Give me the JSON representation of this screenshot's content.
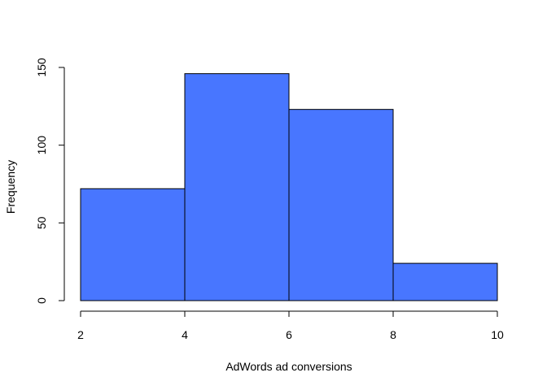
{
  "chart_data": {
    "type": "bar",
    "subtype": "histogram",
    "bins": [
      {
        "start": 2,
        "end": 4,
        "count": 72
      },
      {
        "start": 4,
        "end": 6,
        "count": 146
      },
      {
        "start": 6,
        "end": 8,
        "count": 123
      },
      {
        "start": 8,
        "end": 10,
        "count": 24
      }
    ],
    "xlabel": "AdWords ad conversions",
    "ylabel": "Frequency",
    "xlim": [
      2,
      10
    ],
    "ylim": [
      0,
      150
    ],
    "x_ticks": [
      2,
      4,
      6,
      8,
      10
    ],
    "y_ticks": [
      0,
      50,
      100,
      150
    ],
    "bar_color": "#4876FF",
    "bar_edge_color": "#000000",
    "grid": false,
    "legend": "none"
  }
}
